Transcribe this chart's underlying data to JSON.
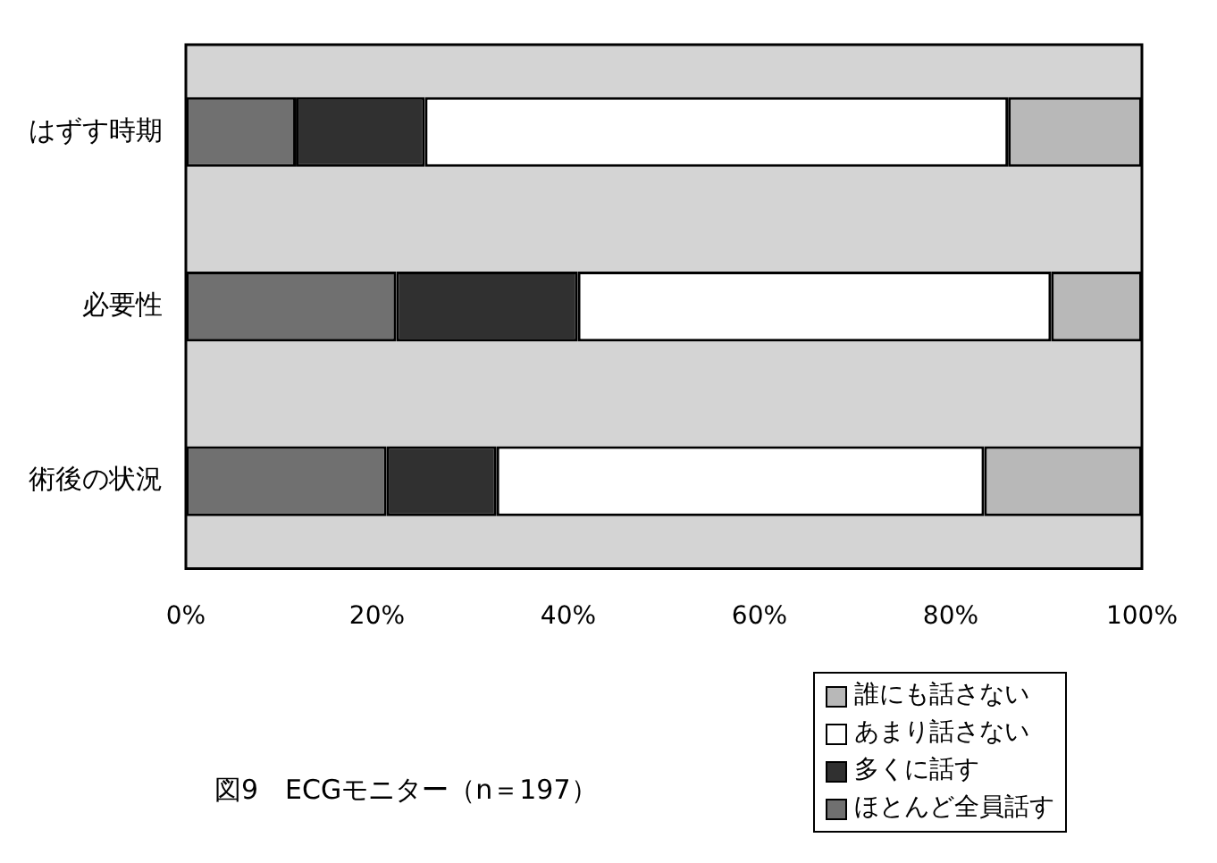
{
  "chart_data": {
    "type": "bar",
    "orientation": "horizontal",
    "stacked": true,
    "title": "図9　ECGモニター（n＝197）",
    "categories": [
      "はずす時期",
      "必要性",
      "術後の状況"
    ],
    "series": [
      {
        "name": "ほとんど全員話す",
        "color": "#707070",
        "values": [
          11.5,
          22,
          21
        ]
      },
      {
        "name": "多くに話す",
        "color": "#303030",
        "values": [
          13.5,
          19,
          11.5
        ]
      },
      {
        "name": "あまり話さない",
        "color": "#ffffff",
        "values": [
          61,
          49.5,
          51
        ]
      },
      {
        "name": "誰にも話さない",
        "color": "#b8b8b8",
        "values": [
          14,
          9.5,
          16.5
        ]
      }
    ],
    "xlim": [
      0,
      100
    ],
    "xticks": [
      {
        "value": 0,
        "label": "0%"
      },
      {
        "value": 20,
        "label": "20%"
      },
      {
        "value": 40,
        "label": "40%"
      },
      {
        "value": 60,
        "label": "60%"
      },
      {
        "value": 80,
        "label": "80%"
      },
      {
        "value": 100,
        "label": "100%"
      }
    ],
    "grid": false,
    "legend": "bottom right"
  }
}
